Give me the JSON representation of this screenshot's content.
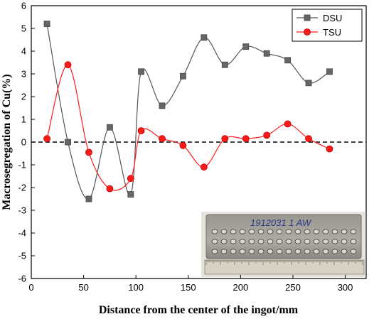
{
  "chart_data": {
    "type": "line",
    "title": "",
    "xlabel": "Distance from the center of the ingot/mm",
    "ylabel": "Macrosegregation of Cu(%)",
    "xlim": [
      0,
      320
    ],
    "ylim": [
      -6,
      6
    ],
    "xticks": [
      0,
      50,
      100,
      150,
      200,
      250,
      300
    ],
    "yticks": [
      -6,
      -5,
      -4,
      -3,
      -2,
      -1,
      0,
      1,
      2,
      3,
      4,
      5,
      6
    ],
    "reference_line": {
      "y": 0,
      "style": "dashed"
    },
    "legend": {
      "position": "top-right"
    },
    "series": [
      {
        "name": "DSU",
        "color": "#555555",
        "marker": "square",
        "x": [
          15,
          35,
          55,
          75,
          95,
          105,
          125,
          145,
          165,
          185,
          205,
          225,
          245,
          265,
          285
        ],
        "y": [
          5.2,
          0.0,
          -2.5,
          0.65,
          -2.3,
          3.1,
          1.6,
          2.9,
          4.6,
          3.4,
          4.2,
          3.9,
          3.6,
          2.6,
          3.1
        ]
      },
      {
        "name": "TSU",
        "color": "#ff1a1a",
        "marker": "circle",
        "x": [
          15,
          35,
          55,
          75,
          95,
          105,
          125,
          145,
          165,
          185,
          205,
          225,
          245,
          265,
          285
        ],
        "y": [
          0.15,
          3.4,
          -0.45,
          -2.05,
          -1.6,
          0.5,
          0.15,
          -0.15,
          -1.1,
          0.15,
          0.15,
          0.3,
          0.8,
          0.15,
          -0.3
        ]
      }
    ],
    "inset_photo": {
      "label": "1912031 1 AW"
    }
  }
}
